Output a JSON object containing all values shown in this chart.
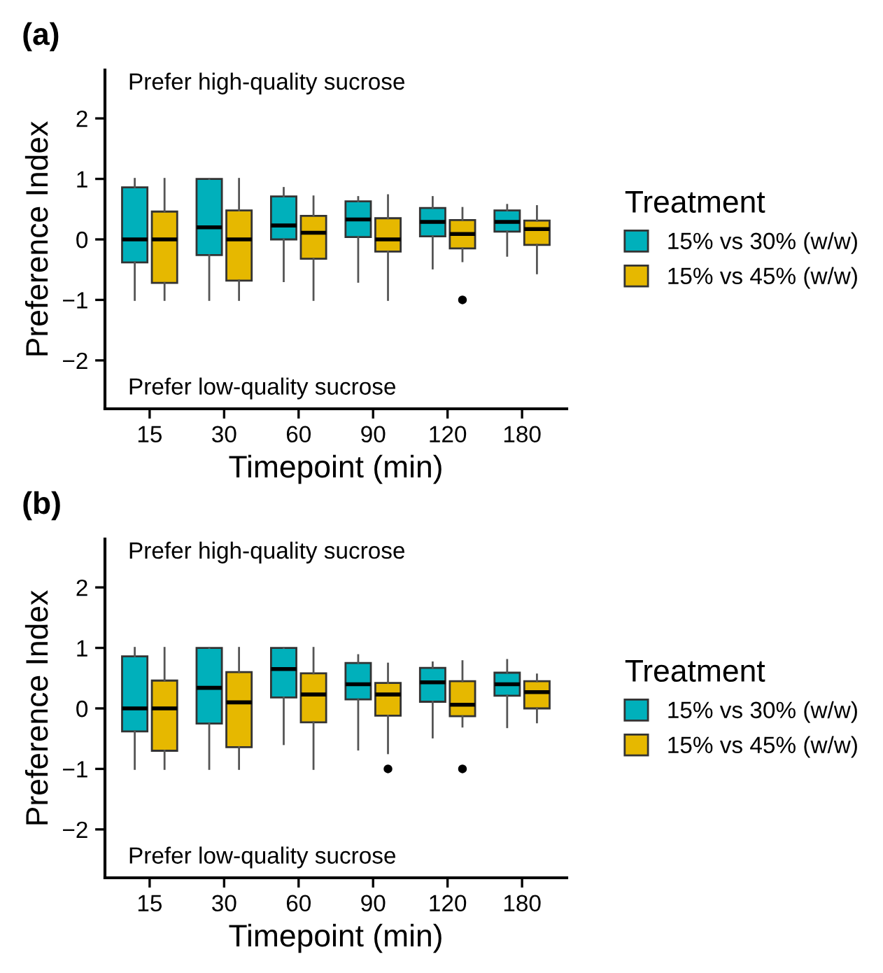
{
  "chart_data": [
    {
      "type": "box",
      "title": "(a)",
      "xlabel": "Timepoint (min)",
      "ylabel": "Preference Index",
      "legend_title": "Treatment",
      "legend": "right",
      "grid": false,
      "categories": [
        "15",
        "30",
        "60",
        "90",
        "120",
        "180"
      ],
      "ylim": [
        -2.8,
        2.8
      ],
      "yticks": [
        -2,
        -1,
        0,
        1,
        2
      ],
      "annotations": [
        "Prefer high-quality sucrose",
        "Prefer low-quality sucrose"
      ],
      "series": [
        {
          "name": "15% vs 30% (w/w)",
          "color": "#00b0bb",
          "boxes": [
            {
              "low": -1,
              "q1": -0.38,
              "median": 0,
              "q3": 0.86,
              "high": 1
            },
            {
              "low": -1,
              "q1": -0.26,
              "median": 0.2,
              "q3": 1,
              "high": 1
            },
            {
              "low": -0.69,
              "q1": 0,
              "median": 0.23,
              "q3": 0.71,
              "high": 0.85
            },
            {
              "low": -0.7,
              "q1": 0.04,
              "median": 0.33,
              "q3": 0.63,
              "high": 0.7
            },
            {
              "low": -0.48,
              "q1": 0.05,
              "median": 0.29,
              "q3": 0.52,
              "high": 0.7
            },
            {
              "low": -0.27,
              "q1": 0.13,
              "median": 0.29,
              "q3": 0.48,
              "high": 0.57
            }
          ]
        },
        {
          "name": "15% vs 45% (w/w)",
          "color": "#e6b800",
          "boxes": [
            {
              "low": -1,
              "q1": -0.72,
              "median": 0,
              "q3": 0.46,
              "high": 1
            },
            {
              "low": -1,
              "q1": -0.68,
              "median": 0,
              "q3": 0.48,
              "high": 1
            },
            {
              "low": -1,
              "q1": -0.32,
              "median": 0.11,
              "q3": 0.39,
              "high": 0.71
            },
            {
              "low": -1,
              "q1": -0.2,
              "median": 0,
              "q3": 0.35,
              "high": 0.73
            },
            {
              "low": -0.36,
              "q1": -0.15,
              "median": 0.09,
              "q3": 0.32,
              "high": 0.52,
              "outliers": [
                -1
              ]
            },
            {
              "low": -0.56,
              "q1": -0.09,
              "median": 0.17,
              "q3": 0.31,
              "high": 0.55
            }
          ]
        }
      ]
    },
    {
      "type": "box",
      "title": "(b)",
      "xlabel": "Timepoint (min)",
      "ylabel": "Preference Index",
      "legend_title": "Treatment",
      "legend": "right",
      "grid": false,
      "categories": [
        "15",
        "30",
        "60",
        "90",
        "120",
        "180"
      ],
      "ylim": [
        -2.8,
        2.8
      ],
      "yticks": [
        -2,
        -1,
        0,
        1,
        2
      ],
      "annotations": [
        "Prefer high-quality sucrose",
        "Prefer low-quality sucrose"
      ],
      "series": [
        {
          "name": "15% vs 30% (w/w)",
          "color": "#00b0bb",
          "boxes": [
            {
              "low": -1,
              "q1": -0.38,
              "median": 0,
              "q3": 0.86,
              "high": 1
            },
            {
              "low": -1,
              "q1": -0.25,
              "median": 0.34,
              "q3": 1,
              "high": 1
            },
            {
              "low": -0.59,
              "q1": 0.18,
              "median": 0.65,
              "q3": 1,
              "high": 1
            },
            {
              "low": -0.68,
              "q1": 0.15,
              "median": 0.4,
              "q3": 0.75,
              "high": 0.88
            },
            {
              "low": -0.48,
              "q1": 0.11,
              "median": 0.43,
              "q3": 0.67,
              "high": 0.76
            },
            {
              "low": -0.31,
              "q1": 0.21,
              "median": 0.4,
              "q3": 0.59,
              "high": 0.8
            }
          ]
        },
        {
          "name": "15% vs 45% (w/w)",
          "color": "#e6b800",
          "boxes": [
            {
              "low": -1,
              "q1": -0.7,
              "median": 0,
              "q3": 0.46,
              "high": 1
            },
            {
              "low": -1,
              "q1": -0.64,
              "median": 0.1,
              "q3": 0.6,
              "high": 1
            },
            {
              "low": -1,
              "q1": -0.23,
              "median": 0.23,
              "q3": 0.58,
              "high": 1
            },
            {
              "low": -0.74,
              "q1": -0.12,
              "median": 0.23,
              "q3": 0.42,
              "high": 0.74,
              "outliers": [
                -1
              ]
            },
            {
              "low": -0.3,
              "q1": -0.13,
              "median": 0.06,
              "q3": 0.45,
              "high": 0.78,
              "outliers": [
                -1
              ]
            },
            {
              "low": -0.23,
              "q1": 0,
              "median": 0.27,
              "q3": 0.45,
              "high": 0.56
            }
          ]
        }
      ]
    }
  ]
}
